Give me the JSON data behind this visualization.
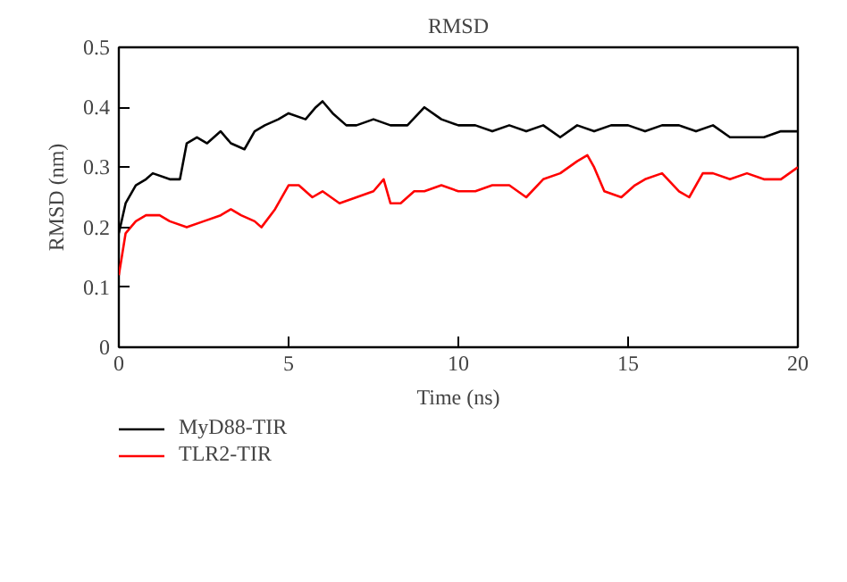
{
  "chart_data": {
    "type": "line",
    "title": "RMSD",
    "xlabel": "Time (ns)",
    "ylabel": "RMSD (nm)",
    "xlim": [
      0,
      20
    ],
    "ylim": [
      0,
      0.5
    ],
    "xticks": [
      0,
      5,
      10,
      15,
      20
    ],
    "yticks": [
      0,
      0.1,
      0.2,
      0.3,
      0.4,
      0.5
    ],
    "grid": false,
    "legend": "bottom left",
    "line_style": "solid",
    "marker": "none",
    "series": [
      {
        "name": "MyD88-TIR",
        "color": "#000000",
        "x": [
          0,
          0.2,
          0.5,
          0.8,
          1.0,
          1.5,
          1.8,
          2.0,
          2.3,
          2.6,
          3.0,
          3.3,
          3.7,
          4.0,
          4.3,
          4.7,
          5.0,
          5.5,
          5.8,
          6.0,
          6.3,
          6.7,
          7.0,
          7.5,
          8.0,
          8.5,
          9.0,
          9.5,
          10,
          10.5,
          11,
          11.5,
          12,
          12.5,
          13,
          13.5,
          14,
          14.5,
          15,
          15.5,
          16,
          16.5,
          17,
          17.5,
          18,
          18.5,
          19,
          19.5,
          20
        ],
        "values": [
          0.19,
          0.24,
          0.27,
          0.28,
          0.29,
          0.28,
          0.28,
          0.34,
          0.35,
          0.34,
          0.36,
          0.34,
          0.33,
          0.36,
          0.37,
          0.38,
          0.39,
          0.38,
          0.4,
          0.41,
          0.39,
          0.37,
          0.37,
          0.38,
          0.37,
          0.37,
          0.4,
          0.38,
          0.37,
          0.37,
          0.36,
          0.37,
          0.36,
          0.37,
          0.35,
          0.37,
          0.36,
          0.37,
          0.37,
          0.36,
          0.37,
          0.37,
          0.36,
          0.37,
          0.35,
          0.35,
          0.35,
          0.36,
          0.36
        ]
      },
      {
        "name": "TLR2-TIR",
        "color": "#ff0000",
        "x": [
          0,
          0.2,
          0.5,
          0.8,
          1.2,
          1.5,
          2.0,
          2.5,
          3.0,
          3.3,
          3.6,
          4.0,
          4.2,
          4.6,
          5.0,
          5.3,
          5.7,
          6.0,
          6.5,
          7.0,
          7.5,
          7.8,
          8.0,
          8.3,
          8.7,
          9.0,
          9.5,
          10,
          10.5,
          11,
          11.5,
          12,
          12.5,
          13,
          13.5,
          13.8,
          14.0,
          14.3,
          14.8,
          15.2,
          15.5,
          16,
          16.5,
          16.8,
          17.2,
          17.5,
          18,
          18.5,
          19,
          19.5,
          20
        ],
        "values": [
          0.12,
          0.19,
          0.21,
          0.22,
          0.22,
          0.21,
          0.2,
          0.21,
          0.22,
          0.23,
          0.22,
          0.21,
          0.2,
          0.23,
          0.27,
          0.27,
          0.25,
          0.26,
          0.24,
          0.25,
          0.26,
          0.28,
          0.24,
          0.24,
          0.26,
          0.26,
          0.27,
          0.26,
          0.26,
          0.27,
          0.27,
          0.25,
          0.28,
          0.29,
          0.31,
          0.32,
          0.3,
          0.26,
          0.25,
          0.27,
          0.28,
          0.29,
          0.26,
          0.25,
          0.29,
          0.29,
          0.28,
          0.29,
          0.28,
          0.28,
          0.3
        ]
      }
    ]
  }
}
